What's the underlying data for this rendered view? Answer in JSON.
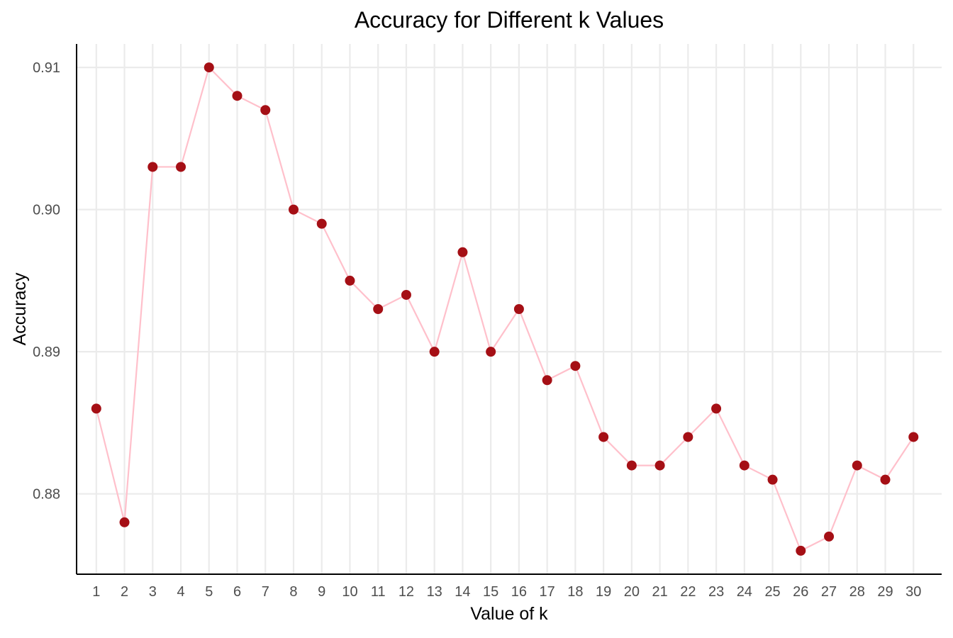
{
  "chart_data": {
    "type": "line",
    "title": "Accuracy for Different k Values",
    "xlabel": "Value of k",
    "ylabel": "Accuracy",
    "x": [
      1,
      2,
      3,
      4,
      5,
      6,
      7,
      8,
      9,
      10,
      11,
      12,
      13,
      14,
      15,
      16,
      17,
      18,
      19,
      20,
      21,
      22,
      23,
      24,
      25,
      26,
      27,
      28,
      29,
      30
    ],
    "series": [
      {
        "values": [
          0.886,
          0.878,
          0.903,
          0.903,
          0.91,
          0.908,
          0.907,
          0.9,
          0.899,
          0.895,
          0.893,
          0.894,
          0.89,
          0.897,
          0.89,
          0.893,
          0.888,
          0.889,
          0.884,
          0.882,
          0.882,
          0.884,
          0.886,
          0.882,
          0.881,
          0.876,
          0.877,
          0.882,
          0.881,
          0.884
        ]
      }
    ],
    "x_ticks": [
      "1",
      "2",
      "3",
      "4",
      "5",
      "6",
      "7",
      "8",
      "9",
      "10",
      "11",
      "12",
      "13",
      "14",
      "15",
      "16",
      "17",
      "18",
      "19",
      "20",
      "21",
      "22",
      "23",
      "24",
      "25",
      "26",
      "27",
      "28",
      "29",
      "30"
    ],
    "y_ticks": [
      {
        "value": 0.88,
        "label": "0.88"
      },
      {
        "value": 0.89,
        "label": "0.89"
      },
      {
        "value": 0.9,
        "label": "0.90"
      },
      {
        "value": 0.91,
        "label": "0.91"
      }
    ],
    "xlim": [
      0.3,
      31.0
    ],
    "ylim": [
      0.87435,
      0.91165
    ],
    "grid": true,
    "legend": "none",
    "colors": {
      "line": "#ffc0cb",
      "points": "#a50f15",
      "grid": "#ebebeb",
      "axis": "#000000",
      "tick_text": "#4d4d4d"
    }
  }
}
